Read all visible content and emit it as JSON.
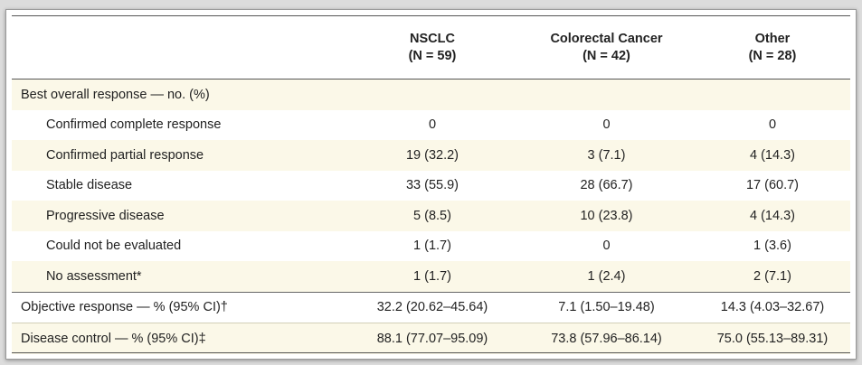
{
  "columns": [
    {
      "name": "NSCLC",
      "n": "(N = 59)"
    },
    {
      "name": "Colorectal Cancer",
      "n": "(N = 42)"
    },
    {
      "name": "Other",
      "n": "(N = 28)"
    }
  ],
  "section_header": "Best overall response — no. (%)",
  "rows": [
    {
      "label": "Confirmed complete response",
      "values": [
        "0",
        "0",
        "0"
      ]
    },
    {
      "label": "Confirmed partial response",
      "values": [
        "19 (32.2)",
        "3 (7.1)",
        "4 (14.3)"
      ]
    },
    {
      "label": "Stable disease",
      "values": [
        "33 (55.9)",
        "28 (66.7)",
        "17 (60.7)"
      ]
    },
    {
      "label": "Progressive disease",
      "values": [
        "5 (8.5)",
        "10 (23.8)",
        "4 (14.3)"
      ]
    },
    {
      "label": "Could not be evaluated",
      "values": [
        "1 (1.7)",
        "0",
        "1 (3.6)"
      ]
    },
    {
      "label": "No assessment*",
      "values": [
        "1 (1.7)",
        "1 (2.4)",
        "2 (7.1)"
      ]
    }
  ],
  "summary_rows": [
    {
      "label": "Objective response — % (95% CI)†",
      "values": [
        "32.2 (20.62–45.64)",
        "7.1 (1.50–19.48)",
        "14.3 (4.03–32.67)"
      ]
    },
    {
      "label": "Disease control — % (95% CI)‡",
      "values": [
        "88.1 (77.07–95.09)",
        "73.8 (57.96–86.14)",
        "75.0 (55.13–89.31)"
      ]
    }
  ]
}
